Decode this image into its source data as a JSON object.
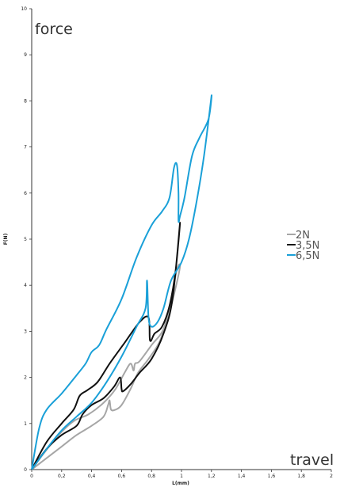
{
  "chart_data": {
    "type": "line",
    "xlabel": "L(mm)",
    "ylabel": "F(N)",
    "xlim": [
      0,
      2
    ],
    "ylim": [
      0,
      10
    ],
    "x_ticks": [
      "0",
      "0,2",
      "0,4",
      "0,6",
      "0,8",
      "1",
      "1,2",
      "1,4",
      "1,6",
      "1,8",
      "2"
    ],
    "y_ticks": [
      "0",
      "1",
      "2",
      "3",
      "4",
      "5",
      "6",
      "7",
      "8",
      "9",
      "10"
    ],
    "annotations": {
      "top_left": "force",
      "bottom_right": "travel"
    },
    "grid": false,
    "legend_position": "right",
    "series": [
      {
        "name": "2N",
        "color": "#a6a6a6",
        "points": [
          [
            0,
            0
          ],
          [
            0.1,
            0.25
          ],
          [
            0.2,
            0.5
          ],
          [
            0.3,
            0.75
          ],
          [
            0.4,
            0.95
          ],
          [
            0.48,
            1.15
          ],
          [
            0.51,
            1.4
          ],
          [
            0.52,
            1.5
          ],
          [
            0.53,
            1.3
          ],
          [
            0.56,
            1.3
          ],
          [
            0.6,
            1.4
          ],
          [
            0.66,
            1.75
          ],
          [
            0.71,
            2.1
          ],
          [
            0.78,
            2.4
          ],
          [
            0.85,
            2.75
          ],
          [
            0.9,
            3.2
          ],
          [
            0.95,
            3.8
          ],
          [
            0.99,
            4.4
          ],
          [
            0.97,
            4.35
          ],
          [
            0.93,
            3.7
          ],
          [
            0.88,
            3.05
          ],
          [
            0.8,
            2.7
          ],
          [
            0.72,
            2.35
          ],
          [
            0.69,
            2.3
          ],
          [
            0.68,
            2.15
          ],
          [
            0.66,
            2.3
          ],
          [
            0.62,
            2.1
          ],
          [
            0.56,
            1.75
          ],
          [
            0.48,
            1.45
          ],
          [
            0.38,
            1.2
          ],
          [
            0.28,
            1.05
          ],
          [
            0.18,
            0.75
          ],
          [
            0.08,
            0.35
          ],
          [
            0,
            0
          ]
        ]
      },
      {
        "name": "3,5N",
        "color": "#111111",
        "points": [
          [
            0,
            0
          ],
          [
            0.1,
            0.45
          ],
          [
            0.2,
            0.75
          ],
          [
            0.3,
            0.95
          ],
          [
            0.34,
            1.2
          ],
          [
            0.4,
            1.4
          ],
          [
            0.48,
            1.55
          ],
          [
            0.55,
            1.8
          ],
          [
            0.59,
            2.0
          ],
          [
            0.6,
            1.75
          ],
          [
            0.61,
            1.7
          ],
          [
            0.66,
            1.85
          ],
          [
            0.72,
            2.1
          ],
          [
            0.8,
            2.4
          ],
          [
            0.88,
            2.95
          ],
          [
            0.94,
            3.7
          ],
          [
            0.99,
            5.35
          ],
          [
            0.96,
            4.3
          ],
          [
            0.92,
            3.55
          ],
          [
            0.87,
            3.1
          ],
          [
            0.82,
            2.95
          ],
          [
            0.79,
            2.8
          ],
          [
            0.78,
            3.3
          ],
          [
            0.72,
            3.2
          ],
          [
            0.62,
            2.75
          ],
          [
            0.52,
            2.3
          ],
          [
            0.44,
            1.9
          ],
          [
            0.37,
            1.72
          ],
          [
            0.32,
            1.6
          ],
          [
            0.28,
            1.3
          ],
          [
            0.2,
            1.0
          ],
          [
            0.1,
            0.6
          ],
          [
            0,
            0
          ]
        ]
      },
      {
        "name": "6,5N",
        "color": "#1aa0d8",
        "points": [
          [
            0,
            0
          ],
          [
            0.1,
            0.45
          ],
          [
            0.2,
            0.85
          ],
          [
            0.3,
            1.15
          ],
          [
            0.4,
            1.45
          ],
          [
            0.5,
            1.9
          ],
          [
            0.6,
            2.45
          ],
          [
            0.7,
            3.1
          ],
          [
            0.76,
            3.5
          ],
          [
            0.77,
            4.1
          ],
          [
            0.78,
            3.3
          ],
          [
            0.8,
            3.1
          ],
          [
            0.84,
            3.2
          ],
          [
            0.88,
            3.5
          ],
          [
            0.93,
            4.1
          ],
          [
            1.0,
            4.5
          ],
          [
            1.05,
            5.0
          ],
          [
            1.1,
            5.8
          ],
          [
            1.15,
            6.8
          ],
          [
            1.2,
            8.1
          ],
          [
            1.18,
            7.6
          ],
          [
            1.12,
            7.2
          ],
          [
            1.07,
            6.8
          ],
          [
            1.02,
            5.9
          ],
          [
            0.99,
            5.5
          ],
          [
            0.98,
            5.4
          ],
          [
            0.98,
            6.0
          ],
          [
            0.97,
            6.6
          ],
          [
            0.95,
            6.55
          ],
          [
            0.92,
            5.9
          ],
          [
            0.87,
            5.6
          ],
          [
            0.8,
            5.3
          ],
          [
            0.7,
            4.6
          ],
          [
            0.6,
            3.7
          ],
          [
            0.5,
            3.05
          ],
          [
            0.45,
            2.7
          ],
          [
            0.4,
            2.55
          ],
          [
            0.36,
            2.3
          ],
          [
            0.3,
            2.05
          ],
          [
            0.2,
            1.65
          ],
          [
            0.1,
            1.3
          ],
          [
            0.05,
            0.9
          ],
          [
            0,
            0
          ]
        ]
      }
    ]
  }
}
